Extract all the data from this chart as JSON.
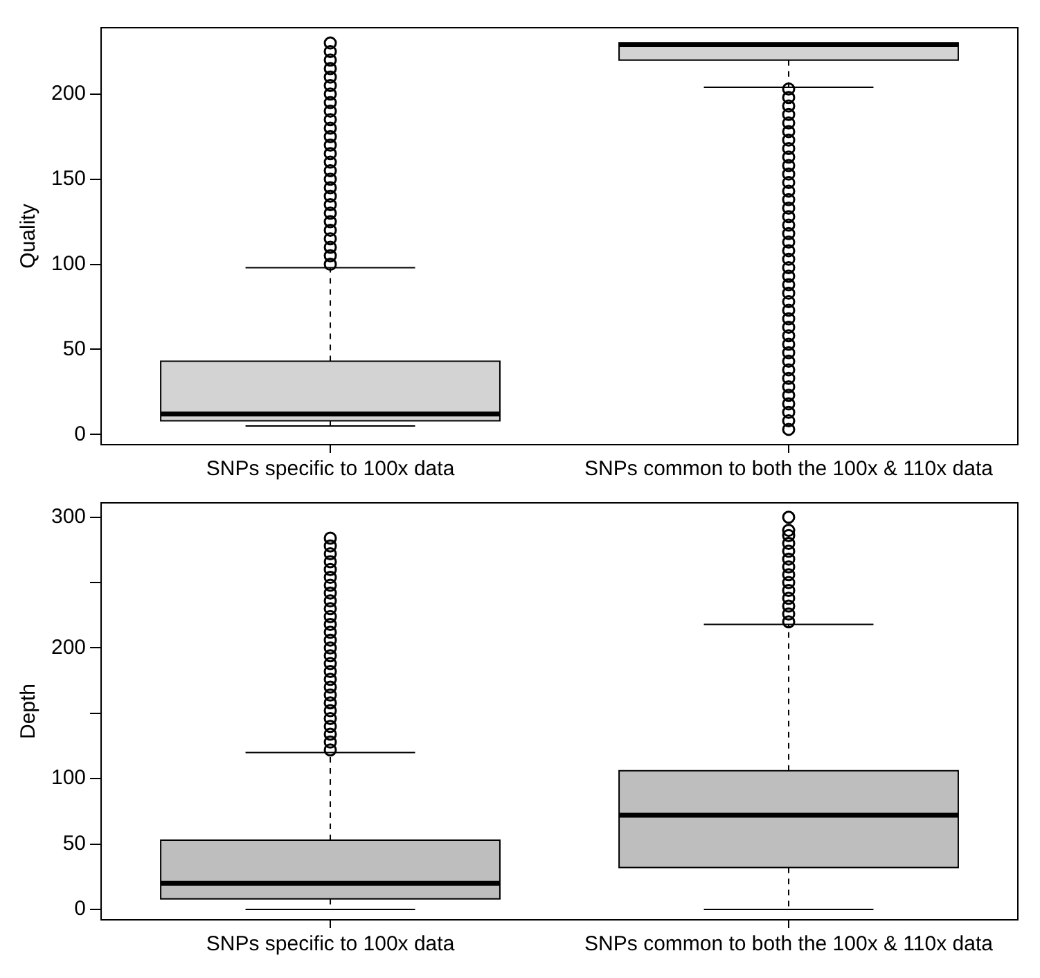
{
  "chart_data": [
    {
      "type": "box",
      "ylabel": "Quality",
      "categories": [
        "SNPs specific to 100x data",
        "SNPs common to both the 100x & 110x data"
      ],
      "ylim": [
        -6,
        239
      ],
      "yticks": [
        0,
        50,
        100,
        150,
        200
      ],
      "grid": false,
      "legend": false,
      "series": [
        {
          "color": "#d3d3d3",
          "boxes": [
            {
              "low": 5,
              "q1": 8,
              "median": 12,
              "q3": 43,
              "high": 98,
              "outliers": [
                100,
                105,
                110,
                115,
                120,
                125,
                130,
                135,
                140,
                145,
                150,
                155,
                160,
                165,
                170,
                175,
                180,
                185,
                190,
                195,
                200,
                205,
                210,
                215,
                220,
                225,
                230
              ]
            },
            {
              "low": 204,
              "q1": 220,
              "median": 229,
              "q3": 230,
              "high": 230,
              "outliers": [
                3,
                8,
                13,
                18,
                23,
                28,
                33,
                38,
                43,
                48,
                53,
                58,
                63,
                68,
                73,
                78,
                83,
                88,
                93,
                98,
                103,
                108,
                113,
                118,
                123,
                128,
                133,
                138,
                143,
                148,
                153,
                158,
                163,
                168,
                173,
                178,
                183,
                188,
                193,
                198,
                203
              ]
            }
          ]
        }
      ]
    },
    {
      "type": "box",
      "ylabel": "Depth",
      "categories": [
        "SNPs specific to 100x data",
        "SNPs common to both the 100x & 110x data"
      ],
      "ylim": [
        -8,
        311
      ],
      "yticks": [
        0,
        50,
        100,
        {
          "value": 150,
          "label": null
        },
        200,
        {
          "value": 250,
          "label": null
        },
        300
      ],
      "grid": false,
      "legend": false,
      "series": [
        {
          "color": "#bebebe",
          "boxes": [
            {
              "low": 0,
              "q1": 8,
              "median": 20,
              "q3": 53,
              "high": 120,
              "outliers": [
                122,
                128,
                134,
                140,
                146,
                152,
                158,
                164,
                170,
                176,
                182,
                188,
                194,
                200,
                206,
                212,
                218,
                224,
                230,
                236,
                242,
                248,
                254,
                260,
                266,
                272,
                278,
                284
              ]
            },
            {
              "low": 0,
              "q1": 32,
              "median": 72,
              "q3": 106,
              "high": 218,
              "outliers": [
                220,
                226,
                232,
                238,
                244,
                250,
                256,
                262,
                268,
                274,
                280,
                286,
                290,
                300
              ]
            }
          ]
        }
      ]
    }
  ]
}
